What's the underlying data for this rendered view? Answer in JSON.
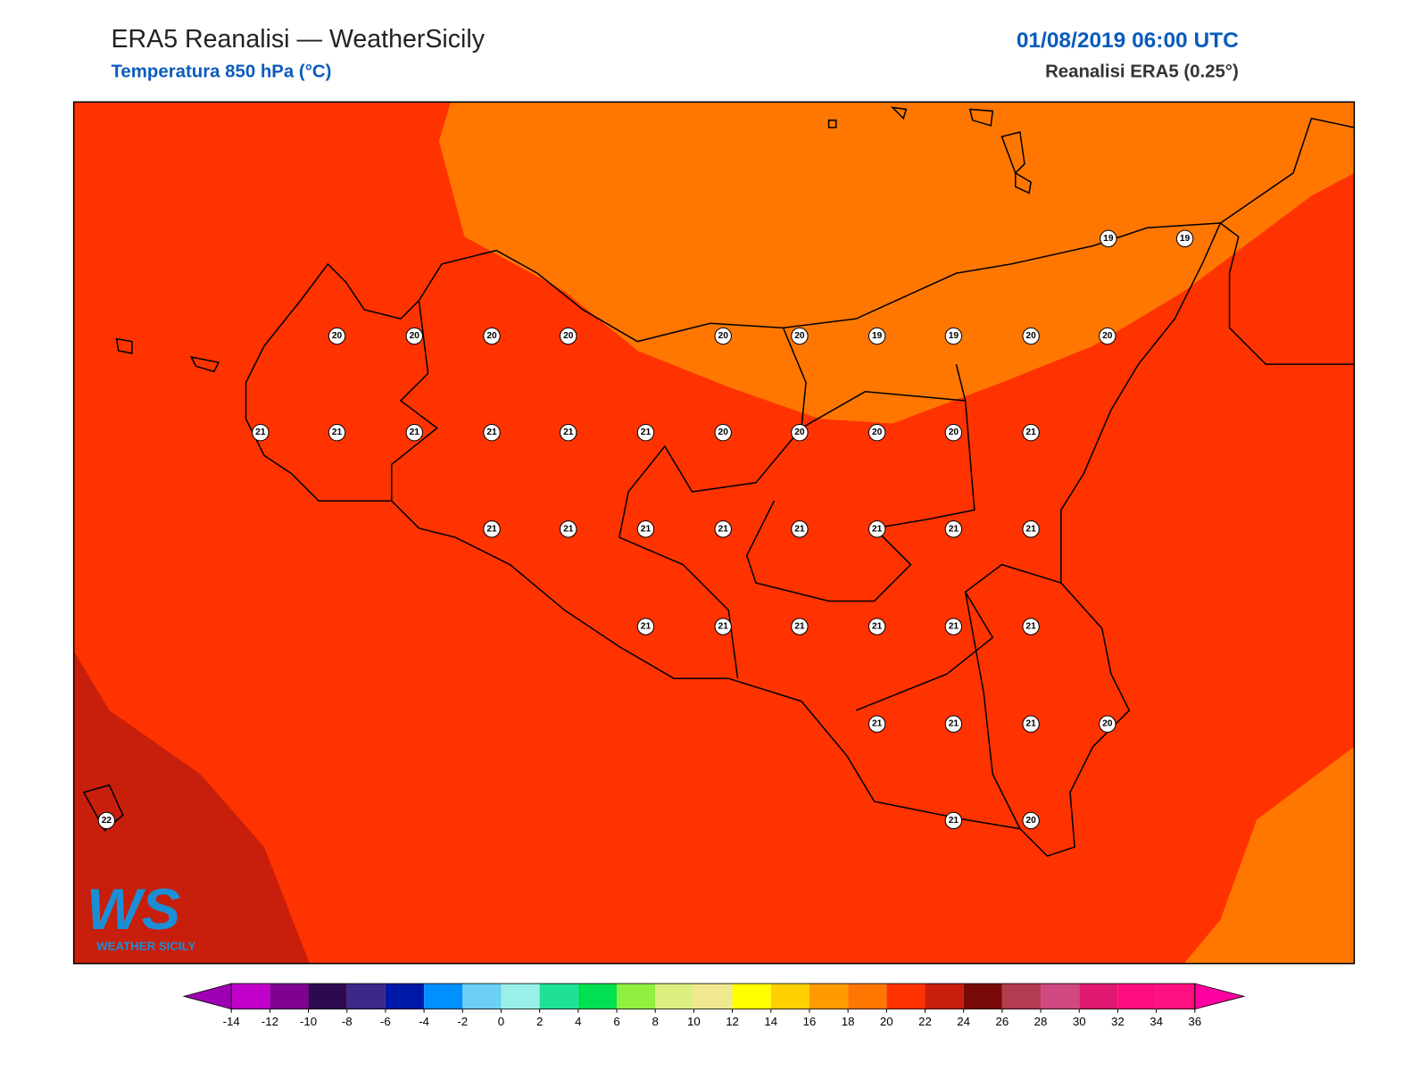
{
  "header": {
    "title": "ERA5 Reanalisi — WeatherSicily",
    "subtitle": "Temperatura 850 hPa (°C)",
    "datetime": "01/08/2019 06:00 UTC",
    "source": "Reanalisi ERA5 (0.25°)"
  },
  "grid_values": [
    19,
    19,
    20,
    20,
    20,
    20,
    20,
    20,
    19,
    19,
    20,
    20,
    21,
    21,
    21,
    21,
    21,
    21,
    20,
    20,
    20,
    20,
    21,
    21,
    21,
    21,
    21,
    21,
    21,
    21,
    21,
    21,
    21,
    21,
    21,
    21,
    21,
    21,
    21,
    21,
    20,
    21,
    20,
    22
  ],
  "colorbar": {
    "ticks": [
      -14,
      -12,
      -10,
      -8,
      -6,
      -4,
      -2,
      0,
      2,
      4,
      6,
      8,
      10,
      12,
      14,
      16,
      18,
      20,
      22,
      24,
      26,
      28,
      30,
      32,
      34,
      36
    ],
    "colors": [
      "#a000b4",
      "#c000c8",
      "#800090",
      "#2c0a50",
      "#3c2888",
      "#0018a8",
      "#0090ff",
      "#6ccff6",
      "#98f0e8",
      "#1ee096",
      "#00e050",
      "#90f040",
      "#dcf080",
      "#f0e890",
      "#ffff00",
      "#ffd000",
      "#ff9a00",
      "#ff7700",
      "#ff3300",
      "#c81e0c",
      "#780a0a",
      "#b43c50",
      "#d04880",
      "#e01870",
      "#ff0c80",
      "#ff1080",
      "#ff00a0"
    ]
  },
  "logo": {
    "mark": "WS",
    "text": "WEATHER SICILY"
  }
}
